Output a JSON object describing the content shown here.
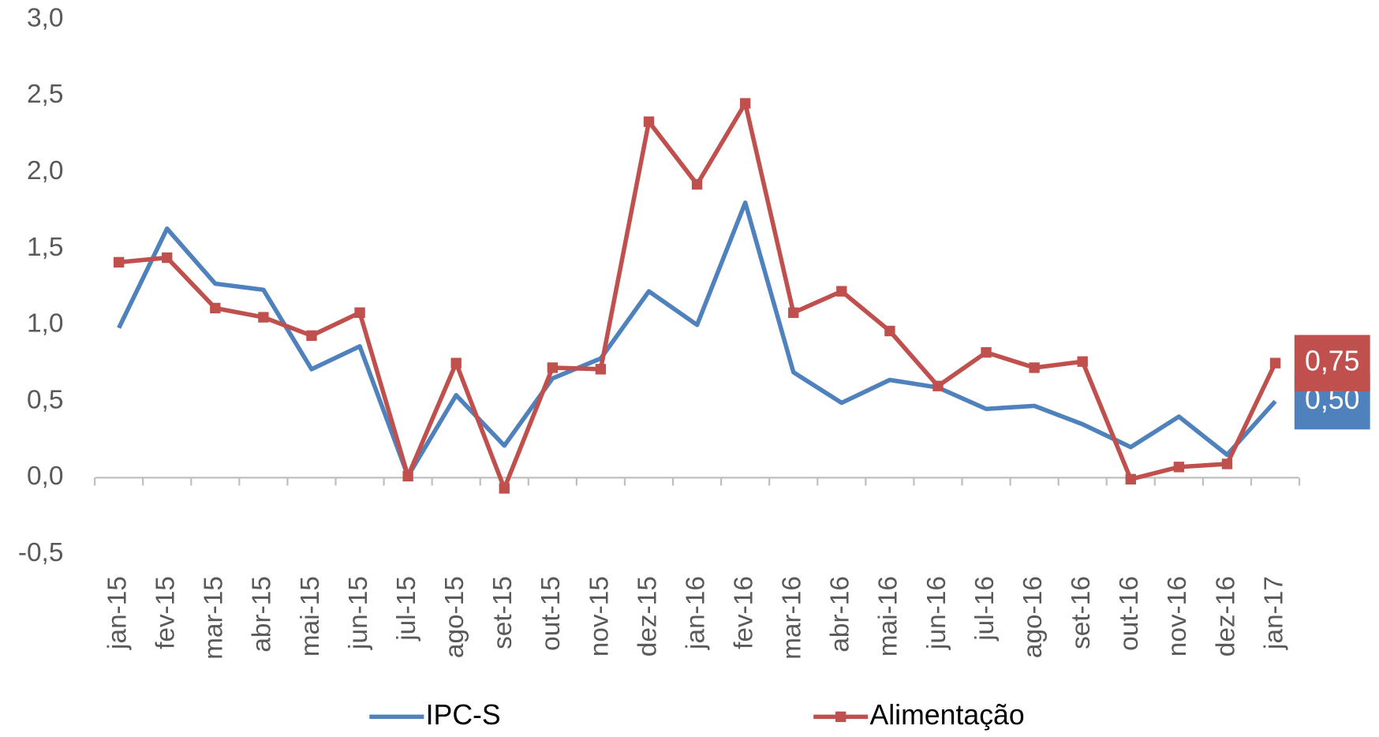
{
  "chart_data": {
    "type": "line",
    "categories": [
      "jan-15",
      "fev-15",
      "mar-15",
      "abr-15",
      "mai-15",
      "jun-15",
      "jul-15",
      "ago-15",
      "set-15",
      "out-15",
      "nov-15",
      "dez-15",
      "jan-16",
      "fev-16",
      "mar-16",
      "abr-16",
      "mai-16",
      "jun-16",
      "jul-16",
      "ago-16",
      "set-16",
      "out-16",
      "nov-16",
      "dez-16",
      "jan-17"
    ],
    "series": [
      {
        "name": "IPC-S",
        "color": "#4f81bd",
        "marker": false,
        "values": [
          0.98,
          1.63,
          1.27,
          1.23,
          0.71,
          0.86,
          0.01,
          0.54,
          0.21,
          0.65,
          0.78,
          1.22,
          1.0,
          1.8,
          0.69,
          0.49,
          0.64,
          0.59,
          0.45,
          0.47,
          0.35,
          0.2,
          0.4,
          0.15,
          0.5
        ],
        "value_labels": [
          null,
          null,
          null,
          null,
          null,
          null,
          null,
          null,
          null,
          null,
          null,
          null,
          null,
          null,
          null,
          null,
          null,
          null,
          null,
          null,
          null,
          null,
          null,
          null,
          "0,50"
        ]
      },
      {
        "name": "Alimentação",
        "color": "#c0504d",
        "marker": true,
        "values": [
          1.41,
          1.44,
          1.11,
          1.05,
          0.93,
          1.08,
          0.01,
          0.75,
          -0.07,
          0.72,
          0.71,
          2.33,
          1.92,
          2.45,
          1.08,
          1.22,
          0.96,
          0.6,
          0.82,
          0.72,
          0.76,
          -0.01,
          0.07,
          0.09,
          0.75
        ],
        "value_labels": [
          null,
          null,
          null,
          null,
          null,
          null,
          null,
          null,
          null,
          null,
          null,
          null,
          null,
          null,
          null,
          null,
          null,
          null,
          null,
          null,
          null,
          null,
          null,
          null,
          "0,75"
        ]
      }
    ],
    "ylim": [
      -0.5,
      3.0
    ],
    "yticks": [
      {
        "value": -0.5,
        "label": "-0,5"
      },
      {
        "value": 0,
        "label": "0,0"
      },
      {
        "value": 0.5,
        "label": "0,5"
      },
      {
        "value": 1.0,
        "label": "1,0"
      },
      {
        "value": 1.5,
        "label": "1,5"
      },
      {
        "value": 2.0,
        "label": "2,0"
      },
      {
        "value": 2.5,
        "label": "2,5"
      },
      {
        "value": 3.0,
        "label": "3,0"
      }
    ],
    "grid": false,
    "legend": "bottom"
  }
}
